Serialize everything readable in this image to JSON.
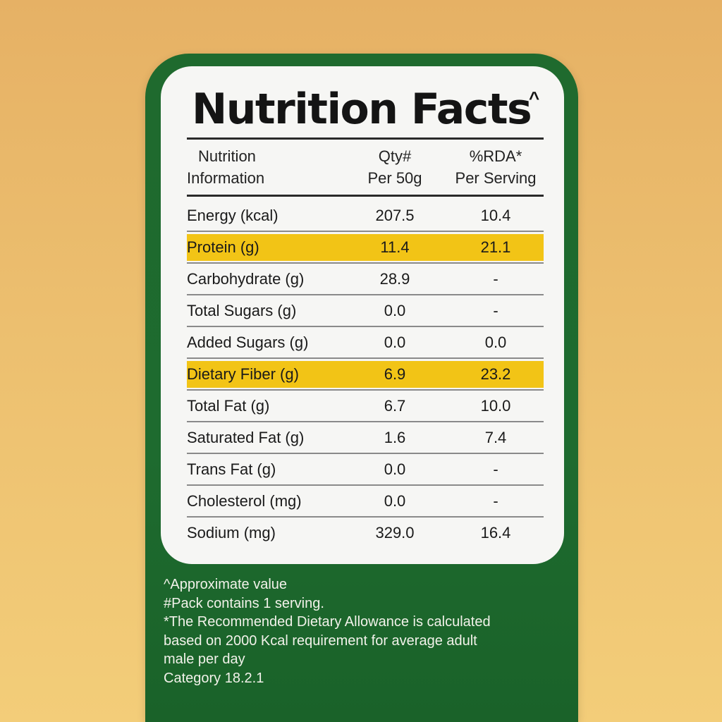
{
  "label": {
    "title": "Nutrition Facts",
    "title_mark": "^",
    "headers": {
      "col1_line1": "Nutrition",
      "col1_line2": "Information",
      "col2_line1": "Qty#",
      "col2_line2": "Per 50g",
      "col3_line1": "%RDA*",
      "col3_line2": "Per Serving"
    },
    "rows": [
      {
        "name": "Energy (kcal)",
        "qty": "207.5",
        "rda": "10.4",
        "highlight": false
      },
      {
        "name": "Protein (g)",
        "qty": "11.4",
        "rda": "21.1",
        "highlight": true
      },
      {
        "name": "Carbohydrate (g)",
        "qty": "28.9",
        "rda": "-",
        "highlight": false
      },
      {
        "name": "Total Sugars (g)",
        "qty": "0.0",
        "rda": "-",
        "highlight": false
      },
      {
        "name": "Added Sugars (g)",
        "qty": "0.0",
        "rda": "0.0",
        "highlight": false
      },
      {
        "name": "Dietary Fiber (g)",
        "qty": "6.9",
        "rda": "23.2",
        "highlight": true
      },
      {
        "name": "Total Fat (g)",
        "qty": "6.7",
        "rda": "10.0",
        "highlight": false
      },
      {
        "name": "Saturated Fat (g)",
        "qty": "1.6",
        "rda": "7.4",
        "highlight": false
      },
      {
        "name": "Trans Fat (g)",
        "qty": "0.0",
        "rda": "-",
        "highlight": false
      },
      {
        "name": "Cholesterol (mg)",
        "qty": "0.0",
        "rda": "-",
        "highlight": false
      },
      {
        "name": "Sodium (mg)",
        "qty": "329.0",
        "rda": "16.4",
        "highlight": false
      }
    ],
    "footnotes": [
      "^Approximate value",
      "#Pack contains 1 serving.",
      "*The Recommended Dietary Allowance is calculated",
      "based on 2000 Kcal requirement for average adult",
      "male per day",
      "Category 18.2.1"
    ]
  },
  "colors": {
    "background": "#ecbf6f",
    "pack_green": "#1e6b2f",
    "card": "#f6f6f4",
    "highlight": "#f2c416"
  }
}
